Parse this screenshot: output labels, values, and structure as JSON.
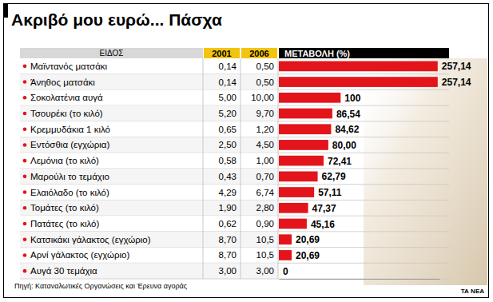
{
  "chart_data": {
    "type": "bar",
    "orientation": "horizontal",
    "title": "Ακριβό μου ευρώ... Πάσχα",
    "ylabel": "ΕΙΔΟΣ",
    "xlabel": "ΜΕΤΑΒΟΛΗ (%)",
    "categories": [
      "Μαϊντανός ματσάκι",
      "Άνηθος ματσάκι",
      "Σοκολατένια αυγά",
      "Τσουρέκι (το κιλό)",
      "Κρεμμυδάκια 1 κιλό",
      "Εντόσθια (εγχώρια)",
      "Λεμόνια (το κιλό)",
      "Μαρούλι το τεμάχιο",
      "Ελαιόλαδο (το κιλό)",
      "Τομάτες (το κιλό)",
      "Πατάτες (το κιλό)",
      "Κατσικάκι γάλακτος (εγχώριο)",
      "Αρνί γάλακτος (εγχώριο)",
      "Αυγά 30 τεμάχια"
    ],
    "values": [
      257.14,
      257.14,
      100,
      86.54,
      84.62,
      80.0,
      72.41,
      62.79,
      57.11,
      47.37,
      45.16,
      20.69,
      20.69,
      0
    ],
    "value_labels": [
      "257,14",
      "257,14",
      "100",
      "86,54",
      "84,62",
      "80,00",
      "72,41",
      "62,79",
      "57,11",
      "47,37",
      "45,16",
      "20,69",
      "20,69",
      "0"
    ],
    "columns": [
      {
        "name": "2001",
        "values": [
          0.14,
          0.14,
          5.0,
          5.2,
          0.65,
          2.5,
          0.58,
          0.43,
          4.29,
          1.9,
          0.62,
          8.7,
          8.7,
          3.0
        ],
        "value_labels": [
          "0,14",
          "0,14",
          "5,00",
          "5,20",
          "0,65",
          "2,50",
          "0,58",
          "0,43",
          "4,29",
          "1,90",
          "0,62",
          "8,70",
          "8,70",
          "3,00"
        ]
      },
      {
        "name": "2006",
        "values": [
          0.5,
          0.5,
          10.0,
          9.7,
          1.2,
          4.5,
          1.0,
          0.7,
          6.74,
          2.8,
          0.9,
          10.5,
          10.5,
          3.0
        ],
        "value_labels": [
          "0,50",
          "0,50",
          "10,00",
          "9,70",
          "1,20",
          "4,50",
          "1,00",
          "0,70",
          "6,74",
          "2,80",
          "0,90",
          "10,5",
          "10,5",
          "3,00"
        ]
      }
    ],
    "color": "#e3151b",
    "data_labels": true,
    "tick_labels": false,
    "xlim": [
      0,
      260
    ],
    "xticks": [],
    "source": "Πηγή: Καταναλωτικές Οργανώσεις και Έρευνα αγοράς",
    "logo": "ΤΑ ΝΕΑ"
  }
}
